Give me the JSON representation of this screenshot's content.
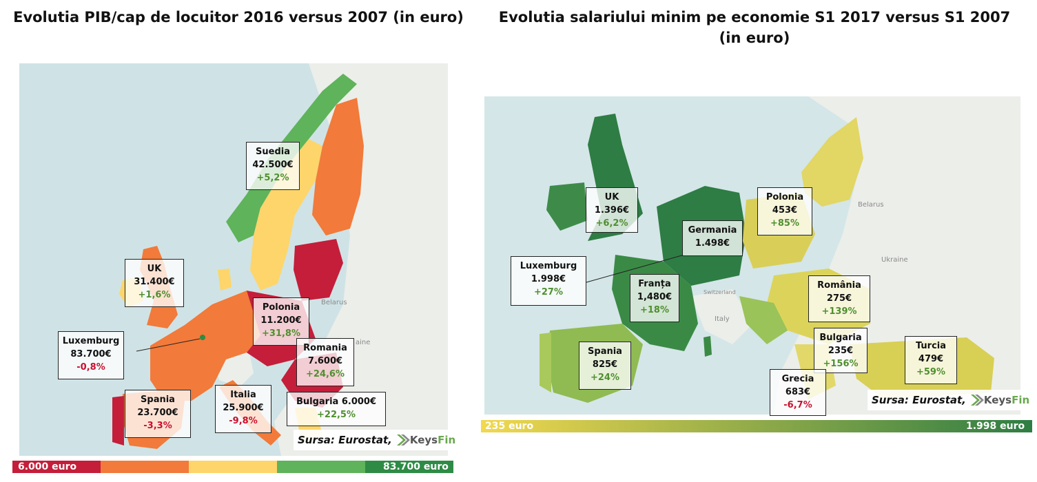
{
  "left": {
    "title": "Evolutia PIB/cap de locuitor 2016 versus 2007 (in euro)",
    "boxes": [
      {
        "name": "Suedia",
        "value": "42.500€",
        "change": "+5,2%",
        "sign": "pos"
      },
      {
        "name": "UK",
        "value": "31.400€",
        "change": "+1,6%",
        "sign": "pos"
      },
      {
        "name": "Polonia",
        "value": "11.200€",
        "change": "+31,8%",
        "sign": "pos"
      },
      {
        "name": "Luxemburg",
        "value": "83.700€",
        "change": "-0,8%",
        "sign": "neg"
      },
      {
        "name": "Romania",
        "value": "7.600€",
        "change": "+24,6%",
        "sign": "pos"
      },
      {
        "name": "Spania",
        "value": "23.700€",
        "change": "-3,3%",
        "sign": "neg"
      },
      {
        "name": "Italia",
        "value": "25.900€",
        "change": "-9,8%",
        "sign": "neg"
      },
      {
        "name": "Bulgaria 6.000€",
        "value": "",
        "change": "+22,5%",
        "sign": "pos"
      }
    ],
    "source": "Sursa: Eurostat,",
    "legend_min": "6.000 euro",
    "legend_max": "83.700 euro",
    "legend_colors": [
      "#c41e3a",
      "#f27a3a",
      "#fdd56a",
      "#5fb35a",
      "#2e8b45"
    ],
    "basemap_labels": {
      "belarus": "Belarus",
      "ukraine": "aine"
    }
  },
  "right": {
    "title": "Evolutia salariului minim pe economie S1 2017 versus S1 2007 (in euro)",
    "boxes": [
      {
        "name": "UK",
        "value": "1.396€",
        "change": "+6,2%",
        "sign": "pos"
      },
      {
        "name": "Polonia",
        "value": "453€",
        "change": "+85%",
        "sign": "pos"
      },
      {
        "name": "Germania",
        "value": "1.498€",
        "change": "",
        "sign": "pos"
      },
      {
        "name": "Luxemburg",
        "value": "1.998€",
        "change": "+27%",
        "sign": "pos"
      },
      {
        "name": "Franța",
        "value": "1,480€",
        "change": "+18%",
        "sign": "pos"
      },
      {
        "name": "România",
        "value": "275€",
        "change": "+139%",
        "sign": "pos"
      },
      {
        "name": "Spania",
        "value": "825€",
        "change": "+24%",
        "sign": "pos"
      },
      {
        "name": "Bulgaria",
        "value": "235€",
        "change": "+156%",
        "sign": "pos"
      },
      {
        "name": "Turcia",
        "value": "479€",
        "change": "+59%",
        "sign": "pos"
      },
      {
        "name": "Grecia",
        "value": "683€",
        "change": "-6,7%",
        "sign": "neg"
      }
    ],
    "source": "Sursa: Eurostat,",
    "legend_min": "235 euro",
    "legend_max": "1.998 euro",
    "legend_colors": [
      "#f2d84e",
      "#2e7d44"
    ],
    "basemap_labels": {
      "belarus": "Belarus",
      "ukraine": "Ukraine",
      "italy": "Italy",
      "switzerland": "Switzerland"
    }
  },
  "logo": {
    "k": "Keys",
    "f": "Fin"
  }
}
